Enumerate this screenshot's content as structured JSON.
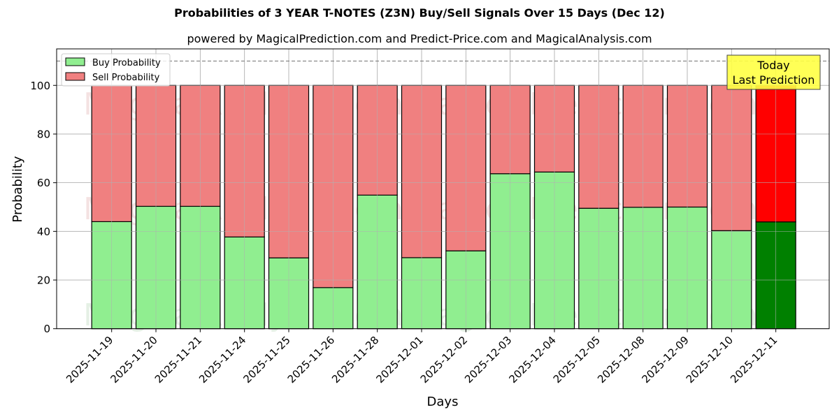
{
  "chart_data": {
    "type": "bar",
    "stacked": true,
    "title": "Probabilities of 3 YEAR T-NOTES (Z3N) Buy/Sell Signals Over 15 Days (Dec 12)",
    "subtitle": "powered by MagicalPrediction.com and Predict-Price.com and MagicalAnalysis.com",
    "xlabel": "Days",
    "ylabel": "Probability",
    "ylim": [
      0,
      115
    ],
    "yticks": [
      0,
      20,
      40,
      60,
      80,
      100
    ],
    "grid": true,
    "legend_position": "upper left",
    "categories": [
      "2025-11-19",
      "2025-11-20",
      "2025-11-21",
      "2025-11-24",
      "2025-11-25",
      "2025-11-26",
      "2025-11-28",
      "2025-12-01",
      "2025-12-02",
      "2025-12-03",
      "2025-12-04",
      "2025-12-05",
      "2025-12-08",
      "2025-12-09",
      "2025-12-10",
      "2025-12-11"
    ],
    "series": [
      {
        "name": "Buy Probability",
        "color": "#90ee90",
        "values": [
          44.0,
          50.3,
          50.3,
          37.7,
          29.1,
          16.9,
          54.9,
          29.2,
          32.0,
          63.7,
          64.4,
          49.5,
          49.9,
          50.0,
          40.3,
          43.9
        ]
      },
      {
        "name": "Sell Probability",
        "color": "#f08080",
        "values": [
          56.0,
          49.7,
          49.7,
          62.3,
          70.9,
          83.1,
          45.1,
          70.8,
          68.0,
          36.3,
          35.6,
          50.5,
          50.1,
          50.0,
          59.7,
          56.1
        ]
      }
    ],
    "highlight": {
      "index": 15,
      "buy_color": "#008000",
      "sell_color": "#ff0000"
    },
    "reference_line": {
      "y": 110,
      "style": "dashed",
      "color": "#808080"
    },
    "annotation": {
      "line1": "Today",
      "line2": "Last Prediction",
      "background": "#ffff44"
    },
    "watermarks": [
      "MagicalAnalysis.com",
      "MagicalPrediction.com"
    ]
  }
}
